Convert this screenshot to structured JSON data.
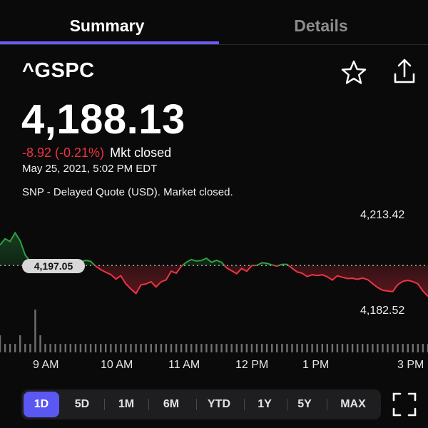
{
  "tabs": [
    {
      "label": "Summary",
      "active": true
    },
    {
      "label": "Details",
      "active": false
    }
  ],
  "quote": {
    "symbol": "^GSPC",
    "price": "4,188.13",
    "change": "-8.92 (-0.21%)",
    "status": "Mkt closed",
    "timestamp": "May 25, 2021, 5:02 PM EDT",
    "note": "SNP - Delayed Quote (USD). Market closed."
  },
  "icons": {
    "favorite": "star-outline-icon",
    "share": "share-icon",
    "fullscreen": "fullscreen-icon"
  },
  "colors": {
    "up": "#2ea043",
    "down": "#ee3344",
    "accent": "#6b5cf6"
  },
  "chart_data": {
    "type": "line",
    "x_tick_labels": [
      "9 AM",
      "10 AM",
      "11 AM",
      "12 PM",
      "1 PM",
      "3 PM"
    ],
    "high_label": "4,213.42",
    "low_label": "4,182.52",
    "previous_close_label": "4,197.05",
    "previous_close": 4197.05,
    "ylim": [
      4178,
      4219
    ],
    "series": [
      {
        "values": [
          4205.1,
          4207.6,
          4206.5,
          4209.9,
          4206.8,
          4201.2,
          4198.6,
          4195.8,
          4197.4,
          4199.1,
          4198.1,
          4199.4,
          4196.9,
          4196.3,
          4198.1,
          4198.8,
          4198.3,
          4199.1,
          4198.7,
          4196.8,
          4195.4,
          4194.4,
          4193.5,
          4191.7,
          4193.0,
          4189.8,
          4187.8,
          4186.0,
          4189.4,
          4189.8,
          4190.6,
          4188.6,
          4190.6,
          4191.4,
          4194.8,
          4194.0,
          4196.7,
          4198.3,
          4199.4,
          4198.8,
          4199.0,
          4199.9,
          4198.3,
          4199.1,
          4198.3,
          4196.1,
          4195.0,
          4193.8,
          4195.9,
          4194.8,
          4197.0,
          4197.1,
          4198.1,
          4197.9,
          4197.3,
          4196.8,
          4197.5,
          4197.5,
          4196.0,
          4194.5,
          4194.0,
          4192.7,
          4193.4,
          4193.1,
          4193.4,
          4192.6,
          4191.3,
          4193.0,
          4192.4,
          4191.9,
          4192.0,
          4191.6,
          4192.1,
          4191.5,
          4189.9,
          4188.4,
          4187.3,
          4187.0,
          4186.8,
          4189.5,
          4190.8,
          4191.2,
          4190.7,
          4189.8,
          4187.0,
          4184.9
        ],
        "volume": [
          2,
          1,
          1,
          1,
          2,
          1,
          1,
          5,
          2,
          1,
          1,
          1,
          1,
          1,
          1,
          1,
          1,
          1,
          1,
          1,
          1,
          1,
          1,
          1,
          1,
          1,
          1,
          1,
          1,
          1,
          1,
          1,
          1,
          1,
          1,
          1,
          1,
          1,
          1,
          1,
          1,
          1,
          1,
          1,
          1,
          1,
          1,
          1,
          1,
          1,
          1,
          1,
          1,
          1,
          1,
          1,
          1,
          1,
          1,
          1,
          1,
          1,
          1,
          1,
          1,
          1,
          1,
          1,
          1,
          1,
          1,
          1,
          1,
          1,
          1,
          1,
          1,
          1,
          1,
          1,
          1,
          1,
          1,
          1,
          1,
          1
        ]
      }
    ]
  },
  "ranges": [
    {
      "label": "1D",
      "active": true
    },
    {
      "label": "5D"
    },
    {
      "label": "1M"
    },
    {
      "label": "6M"
    },
    {
      "label": "YTD"
    },
    {
      "label": "1Y"
    },
    {
      "label": "5Y"
    },
    {
      "label": "MAX"
    }
  ]
}
